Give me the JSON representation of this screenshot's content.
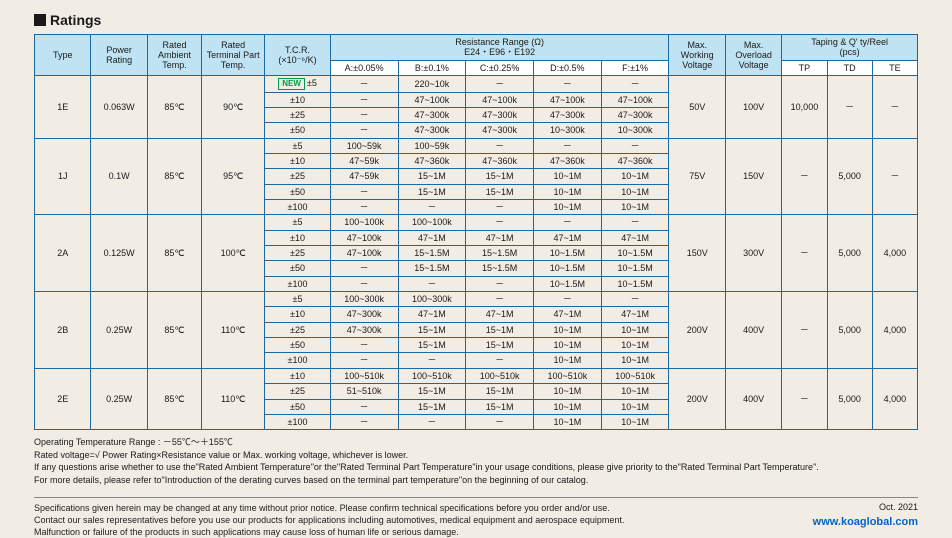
{
  "section_title": "Ratings",
  "headers": {
    "type": "Type",
    "power_rating": "Power Rating",
    "ambient_temp": "Rated Ambient Temp.",
    "terminal_temp": "Rated Terminal Part Temp.",
    "tcr": "T.C.R.",
    "tcr_unit": "(×10⁻⁶/K)",
    "resistance_range": "Resistance Range (Ω)",
    "resistance_series": "E24・E96・E192",
    "max_working_v": "Max. Working Voltage",
    "max_overload_v": "Max. Overload Voltage",
    "taping": "Taping & Q' ty/Reel",
    "taping_unit": "(pcs)",
    "tol_A": "A:±0.05%",
    "tol_B": "B:±0.1%",
    "tol_C": "C:±0.25%",
    "tol_D": "D:±0.5%",
    "tol_F": "F:±1%",
    "tp": "TP",
    "td": "TD",
    "te": "TE",
    "new": "NEW"
  },
  "groups": [
    {
      "type": "1E",
      "power": "0.063W",
      "ambient": "85℃",
      "terminal": "90℃",
      "work_v": "50V",
      "over_v": "100V",
      "tp": "10,000",
      "td": "－",
      "te": "－",
      "rows": [
        {
          "tcr": "±5",
          "A": "－",
          "B": "220~10k",
          "C": "－",
          "D": "－",
          "F": "－",
          "new": true
        },
        {
          "tcr": "±10",
          "A": "－",
          "B": "47~100k",
          "C": "47~100k",
          "D": "47~100k",
          "F": "47~100k"
        },
        {
          "tcr": "±25",
          "A": "－",
          "B": "47~300k",
          "C": "47~300k",
          "D": "47~300k",
          "F": "47~300k"
        },
        {
          "tcr": "±50",
          "A": "－",
          "B": "47~300k",
          "C": "47~300k",
          "D": "10~300k",
          "F": "10~300k"
        }
      ]
    },
    {
      "type": "1J",
      "power": "0.1W",
      "ambient": "85℃",
      "terminal": "95℃",
      "work_v": "75V",
      "over_v": "150V",
      "tp": "－",
      "td": "5,000",
      "te": "－",
      "rows": [
        {
          "tcr": "±5",
          "A": "100~59k",
          "B": "100~59k",
          "C": "－",
          "D": "－",
          "F": "－"
        },
        {
          "tcr": "±10",
          "A": "47~59k",
          "B": "47~360k",
          "C": "47~360k",
          "D": "47~360k",
          "F": "47~360k"
        },
        {
          "tcr": "±25",
          "A": "47~59k",
          "B": "15~1M",
          "C": "15~1M",
          "D": "10~1M",
          "F": "10~1M"
        },
        {
          "tcr": "±50",
          "A": "－",
          "B": "15~1M",
          "C": "15~1M",
          "D": "10~1M",
          "F": "10~1M"
        },
        {
          "tcr": "±100",
          "A": "－",
          "B": "－",
          "C": "－",
          "D": "10~1M",
          "F": "10~1M"
        }
      ]
    },
    {
      "type": "2A",
      "power": "0.125W",
      "ambient": "85℃",
      "terminal": "100℃",
      "work_v": "150V",
      "over_v": "300V",
      "tp": "－",
      "td": "5,000",
      "te": "4,000",
      "rows": [
        {
          "tcr": "±5",
          "A": "100~100k",
          "B": "100~100k",
          "C": "－",
          "D": "－",
          "F": "－"
        },
        {
          "tcr": "±10",
          "A": "47~100k",
          "B": "47~1M",
          "C": "47~1M",
          "D": "47~1M",
          "F": "47~1M"
        },
        {
          "tcr": "±25",
          "A": "47~100k",
          "B": "15~1.5M",
          "C": "15~1.5M",
          "D": "10~1.5M",
          "F": "10~1.5M"
        },
        {
          "tcr": "±50",
          "A": "－",
          "B": "15~1.5M",
          "C": "15~1.5M",
          "D": "10~1.5M",
          "F": "10~1.5M"
        },
        {
          "tcr": "±100",
          "A": "－",
          "B": "－",
          "C": "－",
          "D": "10~1.5M",
          "F": "10~1.5M"
        }
      ]
    },
    {
      "type": "2B",
      "power": "0.25W",
      "ambient": "85℃",
      "terminal": "110℃",
      "work_v": "200V",
      "over_v": "400V",
      "tp": "－",
      "td": "5,000",
      "te": "4,000",
      "rows": [
        {
          "tcr": "±5",
          "A": "100~300k",
          "B": "100~300k",
          "C": "－",
          "D": "－",
          "F": "－"
        },
        {
          "tcr": "±10",
          "A": "47~300k",
          "B": "47~1M",
          "C": "47~1M",
          "D": "47~1M",
          "F": "47~1M"
        },
        {
          "tcr": "±25",
          "A": "47~300k",
          "B": "15~1M",
          "C": "15~1M",
          "D": "10~1M",
          "F": "10~1M"
        },
        {
          "tcr": "±50",
          "A": "－",
          "B": "15~1M",
          "C": "15~1M",
          "D": "10~1M",
          "F": "10~1M"
        },
        {
          "tcr": "±100",
          "A": "－",
          "B": "－",
          "C": "－",
          "D": "10~1M",
          "F": "10~1M"
        }
      ]
    },
    {
      "type": "2E",
      "power": "0.25W",
      "ambient": "85℃",
      "terminal": "110℃",
      "work_v": "200V",
      "over_v": "400V",
      "tp": "－",
      "td": "5,000",
      "te": "4,000",
      "rows": [
        {
          "tcr": "±10",
          "A": "100~510k",
          "B": "100~510k",
          "C": "100~510k",
          "D": "100~510k",
          "F": "100~510k"
        },
        {
          "tcr": "±25",
          "A": "51~510k",
          "B": "15~1M",
          "C": "15~1M",
          "D": "10~1M",
          "F": "10~1M"
        },
        {
          "tcr": "±50",
          "A": "－",
          "B": "15~1M",
          "C": "15~1M",
          "D": "10~1M",
          "F": "10~1M"
        },
        {
          "tcr": "±100",
          "A": "－",
          "B": "－",
          "C": "－",
          "D": "10~1M",
          "F": "10~1M"
        }
      ]
    }
  ],
  "notes": [
    "Operating Temperature Range : －55℃～＋155℃",
    "Rated voltage=√ Power Rating×Resistance value or Max. working voltage, whichever is lower.",
    "If any questions arise whether to use the\"Rated Ambient Temperature\"or the\"Rated Terminal Part Temperature\"in your usage conditions, please give priority to the\"Rated Terminal Part Temperature\".",
    "For more details, please refer to\"Introduction of the derating curves based on the terminal part temperature\"on the beginning of our catalog."
  ],
  "disclaimer": [
    "Specifications given herein may be changed at any time without prior notice. Please confirm technical specifications before you order and/or use.",
    "Contact our sales representatives before you use our products for applications including automotives, medical equipment and aerospace equipment.",
    "Malfunction or failure of the products in such applications may cause loss of human life or serious damage."
  ],
  "date": "Oct. 2021",
  "url": "www.koaglobal.com"
}
